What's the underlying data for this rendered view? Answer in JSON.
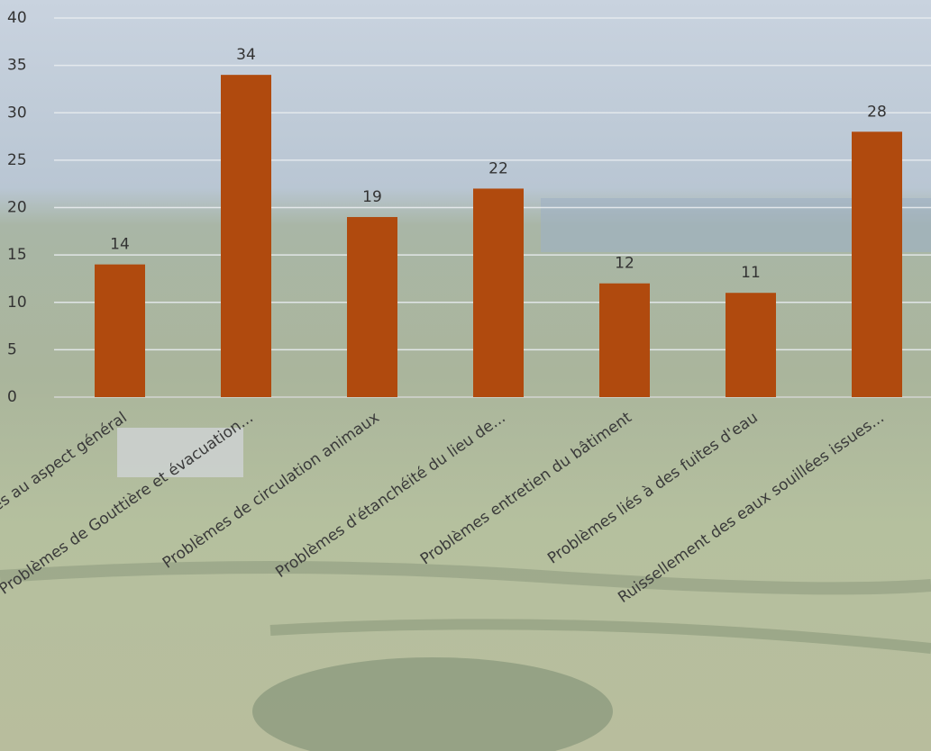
{
  "chart_data": {
    "type": "bar",
    "categories": [
      "Problèmes au aspect général",
      "Problèmes de Gouttière et évacuation...",
      "Problèmes de circulation animaux",
      "Problèmes  d'étanchéité du lieu de...",
      "Problèmes entretien du bâtiment",
      "Problèmes liés à des fuites d'eau",
      "Ruissellement des eaux souillées issues..."
    ],
    "values": [
      14,
      34,
      19,
      22,
      12,
      11,
      28
    ],
    "color": "#b04a0e",
    "ylim": [
      0,
      40
    ],
    "yticks": [
      0,
      5,
      10,
      15,
      20,
      25,
      30,
      35,
      40
    ],
    "grid": true
  }
}
